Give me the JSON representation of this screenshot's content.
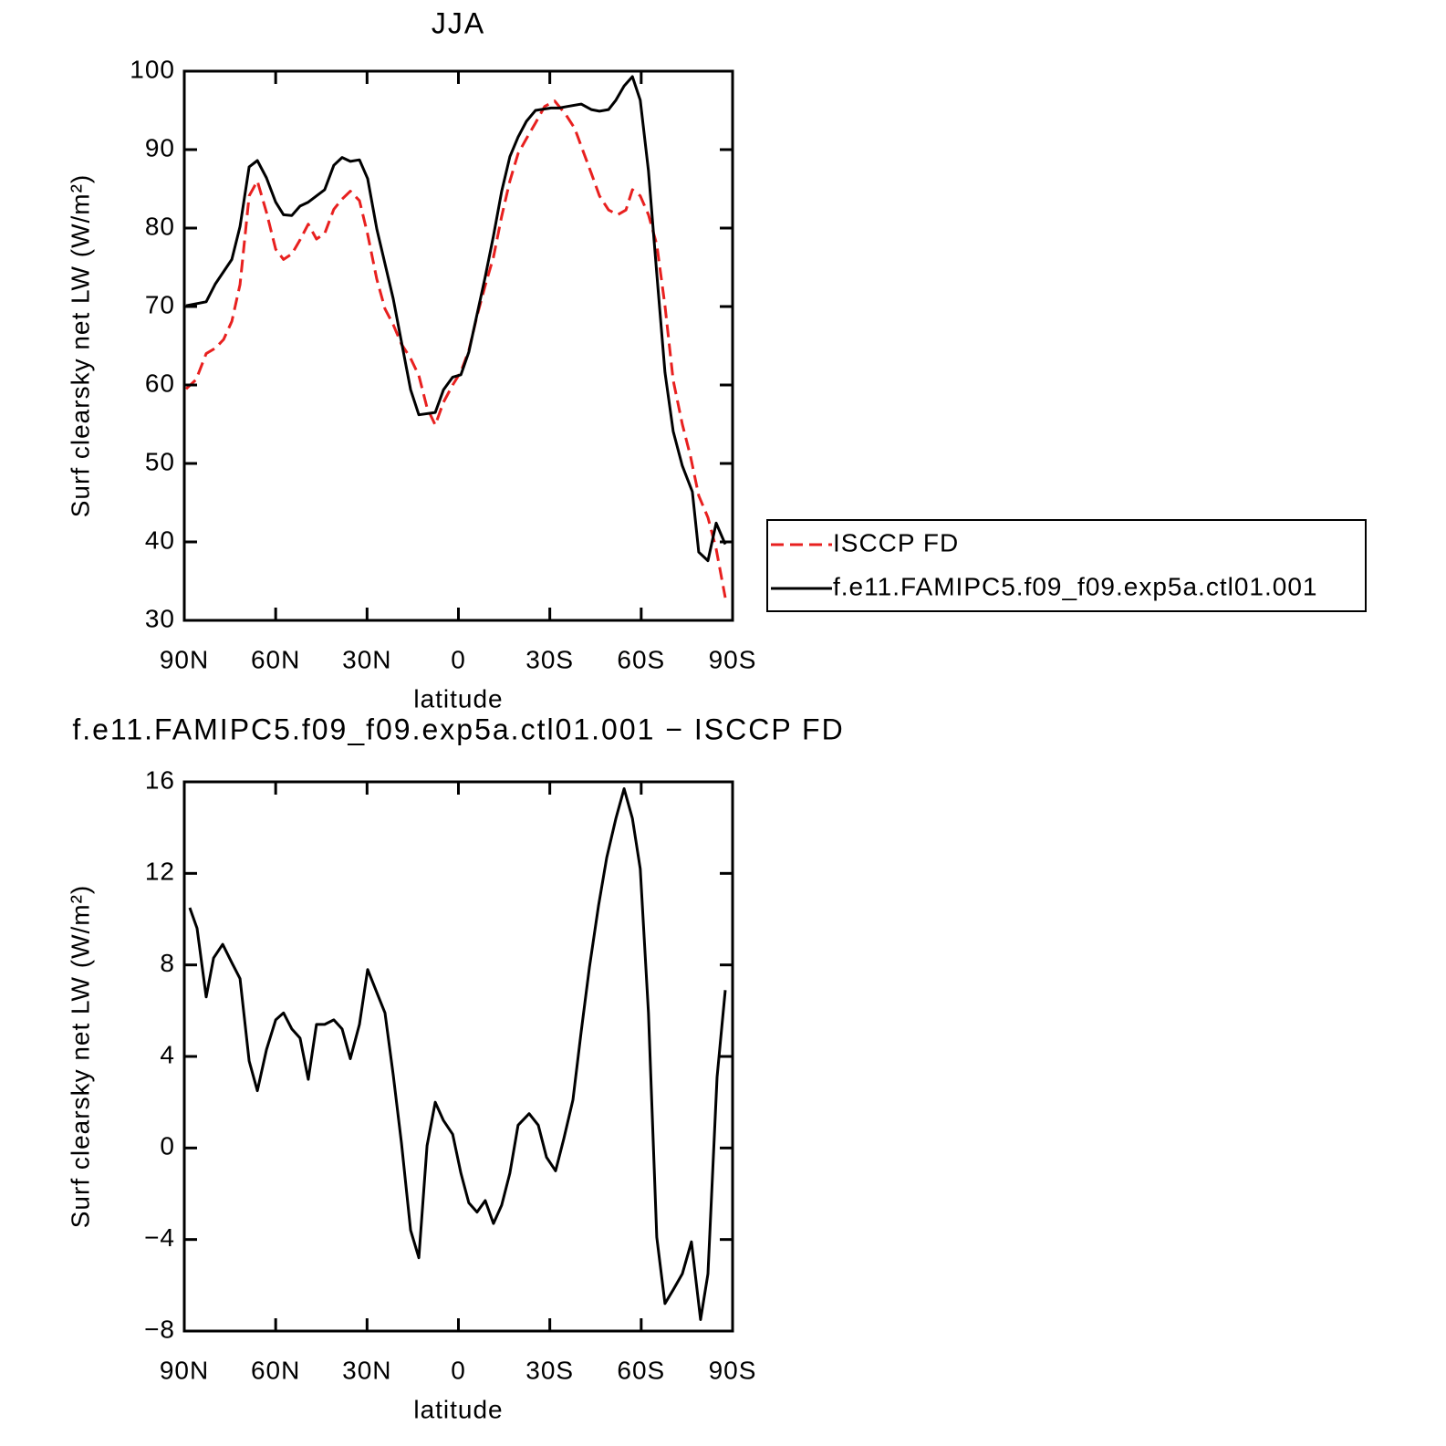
{
  "chart_data": [
    {
      "type": "line",
      "title": "JJA",
      "xlabel": "latitude",
      "ylabel": "Surf clearsky net LW (W/m²)",
      "xlim": [
        90,
        -90
      ],
      "ylim": [
        30,
        100
      ],
      "xticks": [
        {
          "value": 90,
          "label": "90N"
        },
        {
          "value": 60,
          "label": "60N"
        },
        {
          "value": 30,
          "label": "30N"
        },
        0,
        {
          "value": -30,
          "label": "30S"
        },
        {
          "value": -60,
          "label": "60S"
        },
        {
          "value": -90,
          "label": "90S"
        }
      ],
      "yticks": [
        30,
        40,
        50,
        60,
        70,
        80,
        90,
        100
      ],
      "legend": "right",
      "series": [
        {
          "name": "ISCCP FD",
          "color": "#e8201f",
          "style": "dashed",
          "x": [
            89.4,
            86.1,
            82.8,
            79.8,
            77.1,
            74.4,
            71.7,
            68.7,
            66.0,
            63.0,
            60.0,
            57.4,
            54.7,
            52.0,
            49.3,
            46.6,
            43.9,
            40.9,
            38.2,
            35.5,
            32.5,
            29.8,
            26.8,
            24.1,
            21.4,
            18.7,
            15.7,
            13.0,
            10.3,
            7.6,
            4.9,
            1.9,
            -0.8,
            -3.4,
            -6.1,
            -8.8,
            -11.5,
            -14.2,
            -16.9,
            -19.6,
            -22.3,
            -25.3,
            -28.3,
            -31.6,
            -35.2,
            -38.2,
            -41.2,
            -43.6,
            -46.3,
            -49.3,
            -52.3,
            -55.0,
            -57.1,
            -59.7,
            -62.4,
            -65.1,
            -67.8,
            -70.5,
            -73.5,
            -76.2,
            -78.9,
            -81.9,
            -84.6,
            -87.6
          ],
          "values": [
            59.5,
            60.7,
            64.0,
            64.7,
            65.8,
            68.1,
            72.8,
            84.1,
            86.0,
            82.0,
            77.3,
            76.0,
            76.7,
            78.5,
            80.5,
            78.6,
            79.3,
            82.4,
            83.7,
            84.7,
            83.5,
            79.2,
            73.5,
            69.7,
            67.7,
            65.2,
            63.4,
            61.2,
            57.1,
            54.9,
            57.8,
            60.0,
            61.7,
            64.4,
            68.8,
            72.7,
            76.3,
            81.5,
            86.0,
            89.5,
            91.4,
            93.4,
            95.5,
            96.2,
            94.5,
            92.7,
            89.5,
            87.0,
            84.1,
            82.3,
            81.7,
            82.3,
            84.9,
            84.1,
            81.7,
            77.9,
            70.1,
            60.6,
            55.0,
            50.9,
            45.9,
            43.1,
            39.1,
            32.9
          ]
        },
        {
          "name": "f.e11.FAMIPC5.f09_f09.exp5a.ctl01.001",
          "color": "#000000",
          "style": "solid",
          "x": [
            89.4,
            82.8,
            79.8,
            74.4,
            71.7,
            68.7,
            66.0,
            63.0,
            60.0,
            57.4,
            54.7,
            52.0,
            49.3,
            43.9,
            40.9,
            38.2,
            35.5,
            32.5,
            29.8,
            26.8,
            21.4,
            15.7,
            13.0,
            7.6,
            4.9,
            1.9,
            -0.8,
            -3.4,
            -8.8,
            -11.5,
            -14.2,
            -16.9,
            -19.6,
            -22.3,
            -25.3,
            -30.4,
            -33.1,
            -35.8,
            -40.3,
            -43.6,
            -46.3,
            -49.3,
            -51.7,
            -54.4,
            -57.1,
            -59.7,
            -62.4,
            -65.1,
            -67.8,
            -70.5,
            -73.5,
            -76.8,
            -78.9,
            -81.9,
            -84.6,
            -87.6
          ],
          "values": [
            70.1,
            70.6,
            72.9,
            76.0,
            80.2,
            87.8,
            88.6,
            86.4,
            83.3,
            81.7,
            81.6,
            82.8,
            83.3,
            84.9,
            88.0,
            89.0,
            88.5,
            88.7,
            86.3,
            79.9,
            71.0,
            59.4,
            56.2,
            56.5,
            59.4,
            61.0,
            61.3,
            64.2,
            73.8,
            79.0,
            84.7,
            89.1,
            91.6,
            93.6,
            95.0,
            95.3,
            95.3,
            95.5,
            95.8,
            95.1,
            94.9,
            95.1,
            96.3,
            98.1,
            99.3,
            96.3,
            87.3,
            74.2,
            61.6,
            54.1,
            49.7,
            46.4,
            38.7,
            37.6,
            42.4,
            39.7
          ]
        }
      ]
    },
    {
      "type": "line",
      "title": "f.e11.FAMIPC5.f09_f09.exp5a.ctl01.001 − ISCCP FD",
      "xlabel": "latitude",
      "ylabel": "Surf clearsky net LW (W/m²)",
      "xlim": [
        90,
        -90
      ],
      "ylim": [
        -8,
        16
      ],
      "xticks": [
        {
          "value": 90,
          "label": "90N"
        },
        {
          "value": 60,
          "label": "60N"
        },
        {
          "value": 30,
          "label": "30N"
        },
        0,
        {
          "value": -30,
          "label": "30S"
        },
        {
          "value": -60,
          "label": "60S"
        },
        {
          "value": -90,
          "label": "90S"
        }
      ],
      "yticks": [
        {
          "value": -8,
          "label": "−8"
        },
        {
          "value": -4,
          "label": "−4"
        },
        0,
        4,
        8,
        12,
        16
      ],
      "series": [
        {
          "color": "#000000",
          "style": "solid",
          "x": [
            88.2,
            85.8,
            82.8,
            80.4,
            77.4,
            74.4,
            71.7,
            68.7,
            66.0,
            63.0,
            60.0,
            57.4,
            54.7,
            52.0,
            49.3,
            46.6,
            43.9,
            40.9,
            38.2,
            35.5,
            32.5,
            29.8,
            26.8,
            24.1,
            21.4,
            18.7,
            15.7,
            13.0,
            10.3,
            7.6,
            4.9,
            1.9,
            -0.8,
            -3.4,
            -6.1,
            -8.8,
            -11.5,
            -14.2,
            -16.9,
            -19.6,
            -23.2,
            -26.2,
            -28.9,
            -31.9,
            -34.6,
            -37.6,
            -40.3,
            -43.0,
            -46.0,
            -48.7,
            -51.7,
            -54.4,
            -57.1,
            -59.7,
            -62.4,
            -65.1,
            -67.8,
            -70.5,
            -73.5,
            -76.5,
            -79.5,
            -81.9,
            -84.9,
            -87.6
          ],
          "values": [
            10.5,
            9.6,
            6.6,
            8.3,
            8.9,
            8.1,
            7.4,
            3.8,
            2.5,
            4.3,
            5.6,
            5.9,
            5.2,
            4.8,
            3.0,
            5.4,
            5.4,
            5.6,
            5.2,
            3.9,
            5.4,
            7.8,
            6.8,
            5.9,
            3.2,
            0.2,
            -3.6,
            -4.8,
            0.1,
            2.0,
            1.2,
            0.6,
            -1.1,
            -2.4,
            -2.8,
            -2.3,
            -3.3,
            -2.5,
            -1.1,
            1.0,
            1.5,
            1.0,
            -0.4,
            -1.0,
            0.4,
            2.1,
            5.1,
            7.9,
            10.6,
            12.7,
            14.4,
            15.7,
            14.4,
            12.2,
            5.9,
            -3.9,
            -6.8,
            -6.2,
            -5.5,
            -4.1,
            -7.5,
            -5.5,
            3.1,
            6.9
          ]
        }
      ]
    }
  ]
}
